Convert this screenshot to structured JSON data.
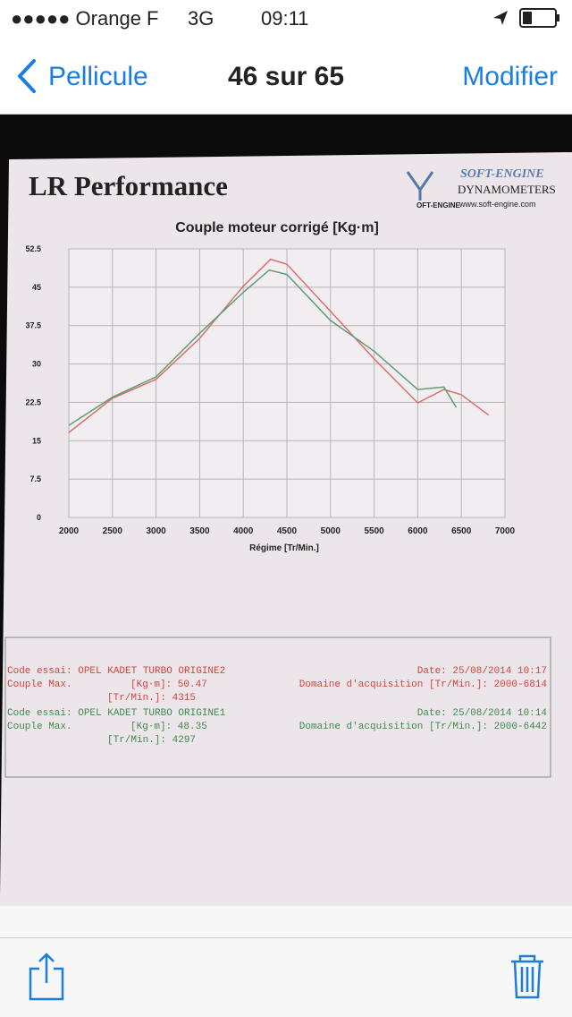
{
  "status_bar": {
    "carrier": "●●●●● Orange F",
    "network": "3G",
    "time": "09:11"
  },
  "nav_bar": {
    "back": "Pellicule",
    "title": "46 sur 65",
    "action": "Modifier"
  },
  "photo": {
    "company": "LR Performance",
    "logo": {
      "brand": "SOFT-ENGINE",
      "small": "OFT-ENGINE",
      "subtitle": "DYNAMOMETERS",
      "url": "www.soft-engine.com"
    },
    "chart": {
      "type": "line",
      "title": "Couple moteur corrigé [Kg·m]",
      "x_label": "Régime [Tr/Min.]",
      "xlim": [
        2000,
        7000
      ],
      "xticks": [
        2000,
        2500,
        3000,
        3500,
        4000,
        4500,
        5000,
        5500,
        6000,
        6500,
        7000
      ],
      "ylim": [
        0,
        52.5
      ],
      "yticks": [
        0,
        7.5,
        15,
        22.5,
        30,
        37.5,
        45,
        52.5
      ],
      "grid": true,
      "series": [
        {
          "color": "#d9706a",
          "x": [
            2000,
            2500,
            3000,
            3500,
            4000,
            4315,
            4500,
            5000,
            5500,
            6000,
            6300,
            6500,
            6814
          ],
          "values": [
            16.6,
            23.3,
            27,
            35,
            45.2,
            50.47,
            49.5,
            40.3,
            31,
            22.4,
            25,
            24,
            20
          ]
        },
        {
          "color": "#5e9e78",
          "x": [
            2000,
            2500,
            3000,
            3500,
            4000,
            4297,
            4500,
            5000,
            5500,
            6000,
            6300,
            6442
          ],
          "values": [
            18,
            23.5,
            27.5,
            36,
            44,
            48.35,
            47.5,
            38.5,
            32.5,
            25,
            25.5,
            21.5
          ]
        }
      ]
    },
    "records": [
      {
        "color": "#d0453c",
        "code": "Code essai: OPEL KADET TURBO ORIGINE2",
        "date": "Date: 25/08/2014 10:17",
        "couple": "Couple Max.",
        "kgm": "[Kg·m]: 50.47",
        "domain": "Domaine d'acquisition [Tr/Min.]: 2000-6814",
        "rpm": "[Tr/Min.]: 4315"
      },
      {
        "color": "#3f8a4e",
        "code": "Code essai: OPEL KADET TURBO ORIGINE1",
        "date": "Date: 25/08/2014 10:14",
        "couple": "Couple Max.",
        "kgm": "[Kg·m]: 48.35",
        "domain": "Domaine d'acquisition [Tr/Min.]: 2000-6442",
        "rpm": "[Tr/Min.]: 4297"
      }
    ]
  }
}
